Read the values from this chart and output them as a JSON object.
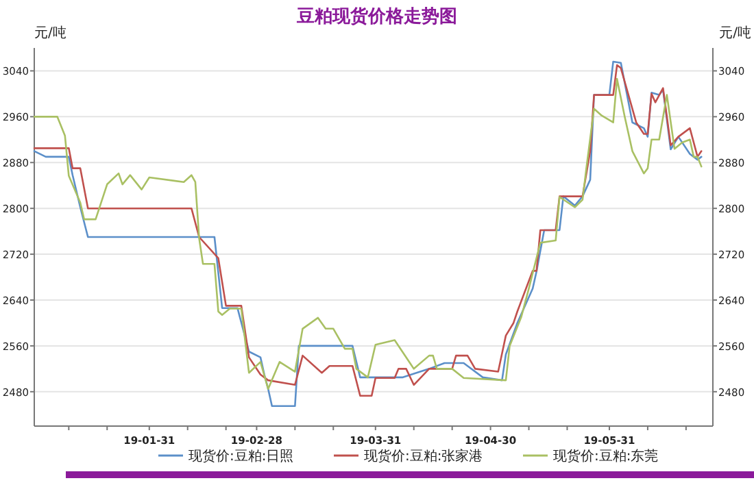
{
  "chart_data": {
    "type": "line",
    "title": "豆粕现货价格走势图",
    "ylabel": "元/吨",
    "y2label": "元/吨",
    "xlim": [
      "--01-01",
      "--06-27"
    ],
    "xticks": [
      {
        "value": "--01-10",
        "label": null
      },
      {
        "value": "--01-20",
        "label": null
      },
      {
        "value": "--01-31",
        "label": "19-01-31"
      },
      {
        "value": "--02-10",
        "label": null
      },
      {
        "value": "--02-20",
        "label": null
      },
      {
        "value": "--02-28",
        "label": "19-02-28"
      },
      {
        "value": "--03-10",
        "label": null
      },
      {
        "value": "--03-20",
        "label": null
      },
      {
        "value": "--03-31",
        "label": "19-03-31"
      },
      {
        "value": "--04-10",
        "label": null
      },
      {
        "value": "--04-20",
        "label": null
      },
      {
        "value": "--04-30",
        "label": "19-04-30"
      },
      {
        "value": "--05-10",
        "label": null
      },
      {
        "value": "--05-20",
        "label": null
      },
      {
        "value": "--05-31",
        "label": "19-05-31"
      },
      {
        "value": "--06-10",
        "label": null
      },
      {
        "value": "--06-20",
        "label": null
      }
    ],
    "ylim": [
      2420,
      3080
    ],
    "yticks": [
      2480,
      2560,
      2640,
      2720,
      2800,
      2880,
      2960,
      3040
    ],
    "y2lim": [
      2420,
      3080
    ],
    "y2ticks": [
      2480,
      2560,
      2640,
      2720,
      2800,
      2880,
      2960,
      3040
    ],
    "grid": "y",
    "legend": "bottom",
    "line_style": "solid",
    "marker": "none",
    "series": [
      {
        "name": "现货价:豆粕:日照",
        "color": "#5b8fc9",
        "x": [
          "--01-01",
          "--01-04",
          "--01-10",
          "--01-11",
          "--01-13",
          "--01-15",
          "--02-17",
          "--02-19",
          "--02-23",
          "--02-26",
          "--03-01",
          "--03-02",
          "--03-03",
          "--03-04",
          "--03-10",
          "--03-11",
          "--03-25",
          "--03-27",
          "--04-07",
          "--04-14",
          "--04-18",
          "--04-23",
          "--04-28",
          "--05-03",
          "--05-04",
          "--05-07",
          "--05-11",
          "--05-12",
          "--05-14",
          "--05-18",
          "--05-19",
          "--05-22",
          "--05-24",
          "--05-26",
          "--05-27",
          "--05-31",
          "--06-01",
          "--06-03",
          "--06-06",
          "--06-09",
          "--06-10",
          "--06-11",
          "--06-13",
          "--06-14",
          "--06-16",
          "--06-18",
          "--06-21",
          "--06-23",
          "--06-24"
        ],
        "values": [
          2900,
          2890,
          2890,
          2858,
          2802,
          2750,
          2750,
          2626,
          2626,
          2550,
          2540,
          2510,
          2485,
          2455,
          2455,
          2560,
          2560,
          2505,
          2505,
          2520,
          2530,
          2530,
          2505,
          2500,
          2545,
          2600,
          2660,
          2690,
          2762,
          2762,
          2821,
          2805,
          2821,
          2850,
          2998,
          2998,
          3056,
          3054,
          2950,
          2940,
          2925,
          3002,
          2998,
          3007,
          2903,
          2925,
          2895,
          2885,
          2890
        ]
      },
      {
        "name": "现货价:豆粕:张家港",
        "color": "#c0504d",
        "x": [
          "--01-01",
          "--01-10",
          "--01-11",
          "--01-13",
          "--01-15",
          "--02-11",
          "--02-13",
          "--02-18",
          "--02-20",
          "--02-24",
          "--02-26",
          "--03-01",
          "--03-03",
          "--03-10",
          "--03-12",
          "--03-17",
          "--03-19",
          "--03-25",
          "--03-27",
          "--03-30",
          "--03-31",
          "--04-05",
          "--04-06",
          "--04-08",
          "--04-10",
          "--04-14",
          "--04-20",
          "--04-21",
          "--04-24",
          "--04-26",
          "--05-02",
          "--05-04",
          "--05-06",
          "--05-07",
          "--05-11",
          "--05-12",
          "--05-13",
          "--05-17",
          "--05-18",
          "--05-24",
          "--05-26",
          "--05-27",
          "--06-01",
          "--06-02",
          "--06-03",
          "--06-07",
          "--06-09",
          "--06-10",
          "--06-11",
          "--06-12",
          "--06-14",
          "--06-16",
          "--06-18",
          "--06-21",
          "--06-23",
          "--06-24"
        ],
        "values": [
          2905,
          2905,
          2870,
          2870,
          2800,
          2800,
          2750,
          2713,
          2630,
          2630,
          2540,
          2510,
          2500,
          2492,
          2543,
          2513,
          2525,
          2525,
          2473,
          2473,
          2504,
          2504,
          2520,
          2520,
          2492,
          2520,
          2520,
          2543,
          2543,
          2520,
          2515,
          2578,
          2600,
          2620,
          2691,
          2691,
          2762,
          2762,
          2821,
          2821,
          2900,
          2998,
          2998,
          3050,
          3045,
          2950,
          2930,
          2930,
          3000,
          2985,
          3010,
          2910,
          2925,
          2940,
          2890,
          2900
        ]
      },
      {
        "name": "现货价:豆粕:东莞",
        "color": "#a9c063",
        "x": [
          "--01-01",
          "--01-07",
          "--01-09",
          "--01-10",
          "--01-13",
          "--01-14",
          "--01-17",
          "--01-20",
          "--01-23",
          "--01-24",
          "--01-26",
          "--01-29",
          "--01-31",
          "--02-09",
          "--02-11",
          "--02-12",
          "--02-13",
          "--02-14",
          "--02-17",
          "--02-18",
          "--02-19",
          "--02-21",
          "--02-24",
          "--02-26",
          "--03-01",
          "--03-03",
          "--03-06",
          "--03-10",
          "--03-12",
          "--03-16",
          "--03-18",
          "--03-20",
          "--03-23",
          "--03-25",
          "--03-26",
          "--03-29",
          "--03-31",
          "--04-05",
          "--04-09",
          "--04-10",
          "--04-14",
          "--04-15",
          "--04-16",
          "--04-20",
          "--04-23",
          "--05-04",
          "--05-05",
          "--05-08",
          "--05-10",
          "--05-13",
          "--05-17",
          "--05-18",
          "--05-22",
          "--05-24",
          "--05-25",
          "--05-27",
          "--05-29",
          "--06-01",
          "--06-02",
          "--06-04",
          "--06-06",
          "--06-09",
          "--06-10",
          "--06-11",
          "--06-13",
          "--06-15",
          "--06-17",
          "--06-19",
          "--06-21",
          "--06-22",
          "--06-23",
          "--06-24"
        ],
        "values": [
          2960,
          2960,
          2927,
          2857,
          2810,
          2781,
          2781,
          2842,
          2861,
          2842,
          2858,
          2833,
          2854,
          2846,
          2858,
          2846,
          2748,
          2703,
          2703,
          2620,
          2614,
          2625,
          2625,
          2513,
          2532,
          2485,
          2532,
          2515,
          2590,
          2609,
          2590,
          2590,
          2555,
          2555,
          2520,
          2505,
          2562,
          2570,
          2530,
          2520,
          2543,
          2543,
          2520,
          2520,
          2504,
          2500,
          2560,
          2610,
          2660,
          2740,
          2744,
          2820,
          2802,
          2815,
          2870,
          2974,
          2962,
          2950,
          3026,
          2960,
          2900,
          2861,
          2870,
          2920,
          2920,
          2998,
          2904,
          2915,
          2920,
          2890,
          2890,
          2873
        ]
      }
    ]
  }
}
